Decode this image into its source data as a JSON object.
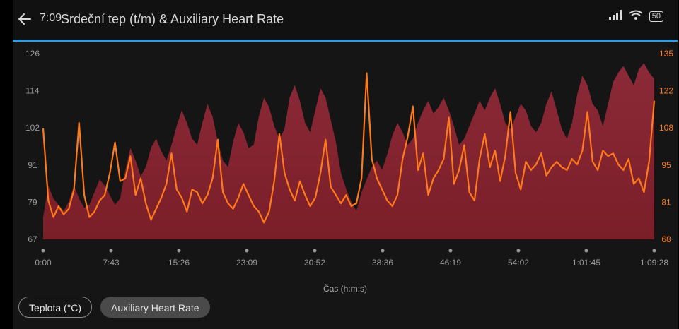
{
  "status_bar": {
    "time": "7:09",
    "battery": "50"
  },
  "header": {
    "title": "Srdeční tep (t/m) & Auxiliary Heart Rate"
  },
  "chart_data": {
    "type": "area+line",
    "title": "Srdeční tep (t/m) & Auxiliary Heart Rate",
    "xlabel": "Čas (h:m:s)",
    "x_ticks": [
      "0:00",
      "7:43",
      "15:26",
      "23:09",
      "30:52",
      "38:36",
      "46:19",
      "54:02",
      "1:01:45",
      "1:09:28"
    ],
    "y_left_ticks": [
      "126",
      "114",
      "102",
      "91",
      "79",
      "67"
    ],
    "y_left_range": [
      67,
      126
    ],
    "y_right_ticks": [
      "135",
      "122",
      "108",
      "95",
      "81",
      "68"
    ],
    "y_right_range": [
      68,
      135
    ],
    "x_max_min": 69.47,
    "colors": {
      "area": "#7a1e28",
      "area_top": "#8c2a38",
      "line": "#ff7a1a",
      "left_axis": "#9a9a9a",
      "right_axis": "#ff7a1a",
      "grid": "#2b2b2b"
    },
    "series": [
      {
        "name": "Srdeční tep (t/m)",
        "axis": "left",
        "style": "area",
        "values": [
          74,
          84,
          80,
          78,
          76,
          79,
          84,
          80,
          77,
          78,
          82,
          86,
          84,
          81,
          78,
          80,
          89,
          96,
          92,
          87,
          90,
          96,
          99,
          95,
          92,
          97,
          103,
          108,
          104,
          99,
          97,
          104,
          110,
          106,
          98,
          92,
          90,
          98,
          104,
          101,
          96,
          97,
          106,
          112,
          109,
          103,
          99,
          102,
          112,
          116,
          111,
          104,
          101,
          108,
          115,
          112,
          105,
          98,
          88,
          83,
          79,
          76,
          82,
          86,
          90,
          92,
          89,
          94,
          100,
          104,
          101,
          97,
          99,
          104,
          108,
          111,
          107,
          109,
          112,
          108,
          103,
          97,
          99,
          103,
          107,
          111,
          108,
          112,
          115,
          110,
          104,
          102,
          106,
          110,
          108,
          103,
          101,
          104,
          110,
          114,
          108,
          102,
          99,
          104,
          113,
          119,
          116,
          110,
          108,
          103,
          110,
          117,
          120,
          122,
          119,
          116,
          121,
          123,
          120,
          118
        ]
      },
      {
        "name": "Auxiliary Heart Rate",
        "axis": "right",
        "style": "line",
        "values": [
          108,
          82,
          76,
          80,
          77,
          79,
          86,
          110,
          84,
          76,
          78,
          82,
          84,
          92,
          103,
          89,
          90,
          98,
          84,
          90,
          81,
          75,
          79,
          83,
          88,
          99,
          86,
          83,
          78,
          86,
          85,
          81,
          84,
          90,
          104,
          85,
          81,
          79,
          83,
          88,
          84,
          80,
          78,
          74,
          78,
          89,
          106,
          92,
          86,
          82,
          89,
          84,
          80,
          83,
          92,
          104,
          87,
          84,
          81,
          84,
          80,
          81,
          90,
          128,
          97,
          90,
          86,
          82,
          80,
          84,
          97,
          105,
          116,
          93,
          99,
          84,
          90,
          93,
          97,
          112,
          88,
          93,
          102,
          85,
          82,
          97,
          106,
          94,
          100,
          89,
          98,
          114,
          92,
          86,
          96,
          93,
          95,
          99,
          91,
          94,
          96,
          94,
          93,
          97,
          95,
          100,
          114,
          96,
          93,
          100,
          98,
          99,
          95,
          93,
          97,
          88,
          90,
          85,
          96,
          118
        ]
      }
    ]
  },
  "chips": {
    "temperature": "Teplota (°C)",
    "aux_hr": "Auxiliary Heart Rate"
  }
}
